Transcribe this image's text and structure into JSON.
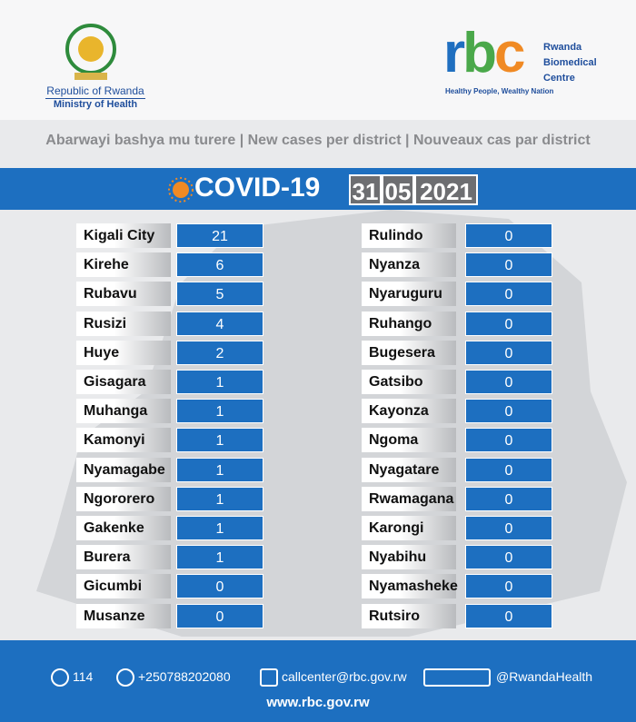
{
  "header": {
    "ministry_line1": "Republic of Rwanda",
    "ministry_line2": "Ministry of Health",
    "logo_letters": [
      "r",
      "b",
      "c"
    ],
    "org_name": [
      "Rwanda",
      "Biomedical",
      "Centre"
    ],
    "tagline": "Healthy People, Wealthy Nation"
  },
  "subtitle": [
    "Abarwayi bashya mu turere",
    "New cases per district",
    "Nouveaux cas par district"
  ],
  "banner": {
    "title": "COVID-19",
    "date": [
      "31",
      "05",
      "2021"
    ]
  },
  "table": {
    "left": [
      [
        "Kigali City",
        21
      ],
      [
        "Kirehe",
        6
      ],
      [
        "Rubavu",
        5
      ],
      [
        "Rusizi",
        4
      ],
      [
        "Huye",
        2
      ],
      [
        "Gisagara",
        1
      ],
      [
        "Muhanga",
        1
      ],
      [
        "Kamonyi",
        1
      ],
      [
        "Nyamagabe",
        1
      ],
      [
        "Ngororero",
        1
      ],
      [
        "Gakenke",
        1
      ],
      [
        "Burera",
        1
      ],
      [
        "Gicumbi",
        0
      ],
      [
        "Musanze",
        0
      ]
    ],
    "right": [
      [
        "Rulindo",
        0
      ],
      [
        "Nyanza",
        0
      ],
      [
        "Nyaruguru",
        0
      ],
      [
        "Ruhango",
        0
      ],
      [
        "Bugesera",
        0
      ],
      [
        "Gatsibo",
        0
      ],
      [
        "Kayonza",
        0
      ],
      [
        "Ngoma",
        0
      ],
      [
        "Nyagatare",
        0
      ],
      [
        "Rwamagana",
        0
      ],
      [
        "Karongi",
        0
      ],
      [
        "Nyabihu",
        0
      ],
      [
        "Nyamasheke",
        0
      ],
      [
        "Rutsiro",
        0
      ]
    ]
  },
  "footer": {
    "phone_short": "114",
    "phone": "+250788202080",
    "email": "callcenter@rbc.gov.rw",
    "social": "@RwandaHealth",
    "website": "www.rbc.gov.rw"
  }
}
